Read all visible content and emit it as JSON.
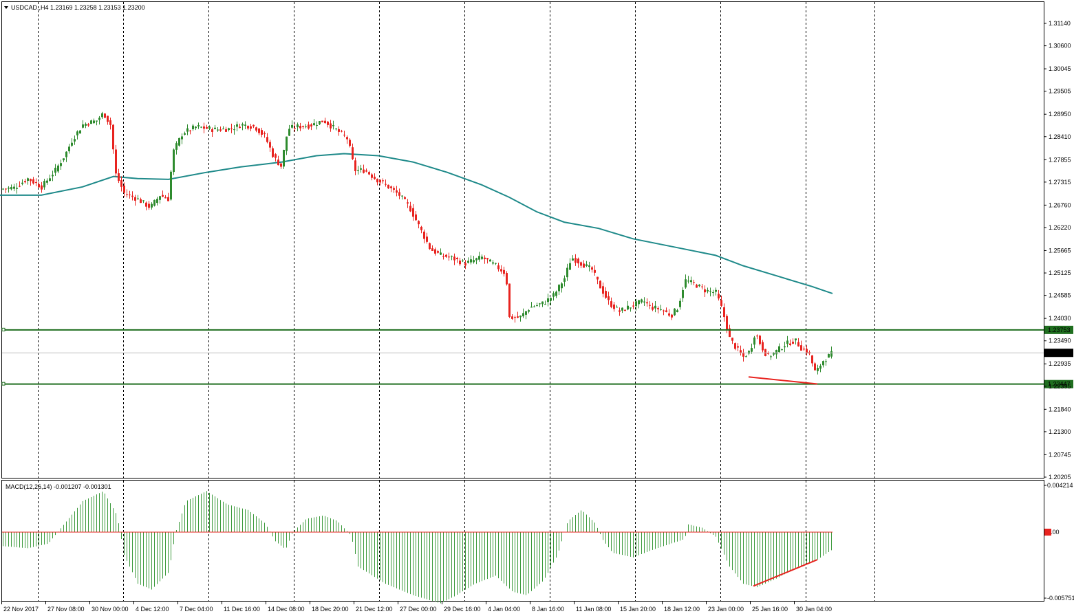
{
  "header": {
    "symbol_info": "USDCAD.,H4  1.23169 1.23258 1.23153 1.23200",
    "macd_info": "MACD(12,26,14) -0.001207 -0.001301"
  },
  "colors": {
    "up_candle": "#2e8b2e",
    "down_candle": "#e8231f",
    "moving_average": "#1f8a8a",
    "support_resistance": "#1f6e1f",
    "macd_histogram": "#3c9a3c",
    "macd_zero_line": "#e8231f",
    "divergence_line": "#e8231f",
    "current_price_bg": "#000000"
  },
  "chart_data": {
    "type": "candlestick",
    "symbol": "USDCAD.",
    "timeframe": "H4",
    "price_axis": {
      "ylim": [
        1.20205,
        1.31675
      ],
      "ticks": [
        "1.31140",
        "1.30600",
        "1.30045",
        "1.29505",
        "1.28950",
        "1.28410",
        "1.27855",
        "1.27315",
        "1.26760",
        "1.26220",
        "1.25665",
        "1.25125",
        "1.24585",
        "1.24030",
        "1.23490",
        "1.22935",
        "1.22395",
        "1.21840",
        "1.21300",
        "1.20745",
        "1.20205"
      ]
    },
    "current_price": "1.23200",
    "levels": [
      {
        "label": "1.23753",
        "value": 1.23753
      },
      {
        "label": "1.22447",
        "value": 1.22447
      }
    ],
    "time_labels": [
      "22 Nov 2017",
      "27 Nov 08:00",
      "30 Nov 00:00",
      "4 Dec 12:00",
      "7 Dec 04:00",
      "11 Dec 16:00",
      "14 Dec 08:00",
      "18 Dec 20:00",
      "21 Dec 12:00",
      "27 Dec 00:00",
      "29 Dec 16:00",
      "4 Jan 04:00",
      "8 Jan 16:00",
      "11 Jan 08:00",
      "15 Jan 20:00",
      "18 Jan 12:00",
      "23 Jan 00:00",
      "25 Jan 16:00",
      "30 Jan 04:00"
    ],
    "price_path": [
      [
        0,
        1.2715
      ],
      [
        20,
        1.2718
      ],
      [
        40,
        1.274
      ],
      [
        60,
        1.272
      ],
      [
        80,
        1.276
      ],
      [
        95,
        1.28
      ],
      [
        105,
        1.2835
      ],
      [
        120,
        1.287
      ],
      [
        140,
        1.288
      ],
      [
        150,
        1.2898
      ],
      [
        160,
        1.287
      ],
      [
        168,
        1.275
      ],
      [
        180,
        1.2705
      ],
      [
        200,
        1.269
      ],
      [
        218,
        1.267
      ],
      [
        232,
        1.27
      ],
      [
        245,
        1.269
      ],
      [
        250,
        1.28
      ],
      [
        265,
        1.285
      ],
      [
        285,
        1.2865
      ],
      [
        310,
        1.2858
      ],
      [
        335,
        1.286
      ],
      [
        350,
        1.287
      ],
      [
        370,
        1.2865
      ],
      [
        385,
        1.284
      ],
      [
        398,
        1.279
      ],
      [
        408,
        1.277
      ],
      [
        418,
        1.286
      ],
      [
        430,
        1.2865
      ],
      [
        450,
        1.2868
      ],
      [
        470,
        1.288
      ],
      [
        490,
        1.2855
      ],
      [
        505,
        1.2835
      ],
      [
        515,
        1.276
      ],
      [
        530,
        1.276
      ],
      [
        545,
        1.274
      ],
      [
        560,
        1.2725
      ],
      [
        580,
        1.27
      ],
      [
        595,
        1.267
      ],
      [
        610,
        1.262
      ],
      [
        625,
        1.257
      ],
      [
        640,
        1.2555
      ],
      [
        655,
        1.255
      ],
      [
        675,
        1.2535
      ],
      [
        700,
        1.255
      ],
      [
        720,
        1.253
      ],
      [
        735,
        1.251
      ],
      [
        740,
        1.2405
      ],
      [
        755,
        1.2405
      ],
      [
        770,
        1.243
      ],
      [
        790,
        1.244
      ],
      [
        805,
        1.246
      ],
      [
        820,
        1.25
      ],
      [
        830,
        1.255
      ],
      [
        845,
        1.2535
      ],
      [
        860,
        1.252
      ],
      [
        870,
        1.2485
      ],
      [
        885,
        1.244
      ],
      [
        900,
        1.242
      ],
      [
        920,
        1.2435
      ],
      [
        935,
        1.2445
      ],
      [
        945,
        1.243
      ],
      [
        960,
        1.2425
      ],
      [
        975,
        1.241
      ],
      [
        985,
        1.243
      ],
      [
        995,
        1.2495
      ],
      [
        1010,
        1.2485
      ],
      [
        1025,
        1.247
      ],
      [
        1040,
        1.2465
      ],
      [
        1050,
        1.242
      ],
      [
        1060,
        1.2355
      ],
      [
        1070,
        1.233
      ],
      [
        1080,
        1.231
      ],
      [
        1090,
        1.2325
      ],
      [
        1097,
        1.237
      ],
      [
        1105,
        1.234
      ],
      [
        1115,
        1.231
      ],
      [
        1125,
        1.232
      ],
      [
        1140,
        1.234
      ],
      [
        1155,
        1.235
      ],
      [
        1165,
        1.233
      ],
      [
        1175,
        1.232
      ],
      [
        1185,
        1.227
      ],
      [
        1195,
        1.23
      ],
      [
        1210,
        1.232
      ]
    ],
    "moving_average_path": [
      [
        0,
        1.27
      ],
      [
        60,
        1.27
      ],
      [
        120,
        1.272
      ],
      [
        165,
        1.2745
      ],
      [
        200,
        1.274
      ],
      [
        245,
        1.2738
      ],
      [
        300,
        1.2755
      ],
      [
        350,
        1.2768
      ],
      [
        410,
        1.278
      ],
      [
        460,
        1.2795
      ],
      [
        500,
        1.28
      ],
      [
        550,
        1.2795
      ],
      [
        600,
        1.278
      ],
      [
        650,
        1.2755
      ],
      [
        700,
        1.2725
      ],
      [
        740,
        1.2695
      ],
      [
        780,
        1.266
      ],
      [
        820,
        1.2635
      ],
      [
        870,
        1.262
      ],
      [
        920,
        1.2595
      ],
      [
        980,
        1.2575
      ],
      [
        1040,
        1.2555
      ],
      [
        1080,
        1.253
      ],
      [
        1130,
        1.2505
      ],
      [
        1180,
        1.248
      ],
      [
        1210,
        1.2463
      ]
    ],
    "price_divergence": [
      [
        1088,
        1.2262
      ],
      [
        1188,
        1.2245
      ]
    ],
    "macd": {
      "label": "MACD(12,26,14)",
      "main": -0.001207,
      "signal": -0.001301,
      "ylim": [
        -0.00575,
        0.004214
      ],
      "ticks": [
        "0.004214",
        "0.00",
        "-0.005751"
      ],
      "histogram_path": [
        [
          0,
          -0.0012
        ],
        [
          40,
          -0.0014
        ],
        [
          70,
          -0.001
        ],
        [
          90,
          0.0005
        ],
        [
          120,
          0.0028
        ],
        [
          150,
          0.0037
        ],
        [
          170,
          0.0015
        ],
        [
          180,
          -0.002
        ],
        [
          200,
          -0.0045
        ],
        [
          220,
          -0.005
        ],
        [
          245,
          -0.0035
        ],
        [
          255,
          0.0
        ],
        [
          270,
          0.0028
        ],
        [
          300,
          0.0037
        ],
        [
          330,
          0.0025
        ],
        [
          360,
          0.002
        ],
        [
          385,
          0.0008
        ],
        [
          400,
          -0.0008
        ],
        [
          415,
          -0.0015
        ],
        [
          425,
          0.0
        ],
        [
          445,
          0.0012
        ],
        [
          470,
          0.0015
        ],
        [
          490,
          0.001
        ],
        [
          510,
          -0.0003
        ],
        [
          520,
          -0.003
        ],
        [
          560,
          -0.0045
        ],
        [
          600,
          -0.0055
        ],
        [
          640,
          -0.0062
        ],
        [
          660,
          -0.0056
        ],
        [
          690,
          -0.0045
        ],
        [
          720,
          -0.0038
        ],
        [
          745,
          -0.0052
        ],
        [
          765,
          -0.0055
        ],
        [
          790,
          -0.0042
        ],
        [
          810,
          -0.002
        ],
        [
          825,
          0.001
        ],
        [
          845,
          0.002
        ],
        [
          865,
          0.0008
        ],
        [
          875,
          -0.0006
        ],
        [
          890,
          -0.0018
        ],
        [
          920,
          -0.0022
        ],
        [
          950,
          -0.0015
        ],
        [
          975,
          -0.001
        ],
        [
          995,
          -0.0006
        ],
        [
          1000,
          0.0007
        ],
        [
          1020,
          0.0004
        ],
        [
          1040,
          -0.0004
        ],
        [
          1060,
          -0.003
        ],
        [
          1080,
          -0.0045
        ],
        [
          1100,
          -0.0048
        ],
        [
          1130,
          -0.004
        ],
        [
          1160,
          -0.003
        ],
        [
          1185,
          -0.0025
        ],
        [
          1210,
          -0.0015
        ]
      ],
      "divergence": [
        [
          1095,
          -0.0047
        ],
        [
          1188,
          -0.0024
        ]
      ]
    }
  }
}
